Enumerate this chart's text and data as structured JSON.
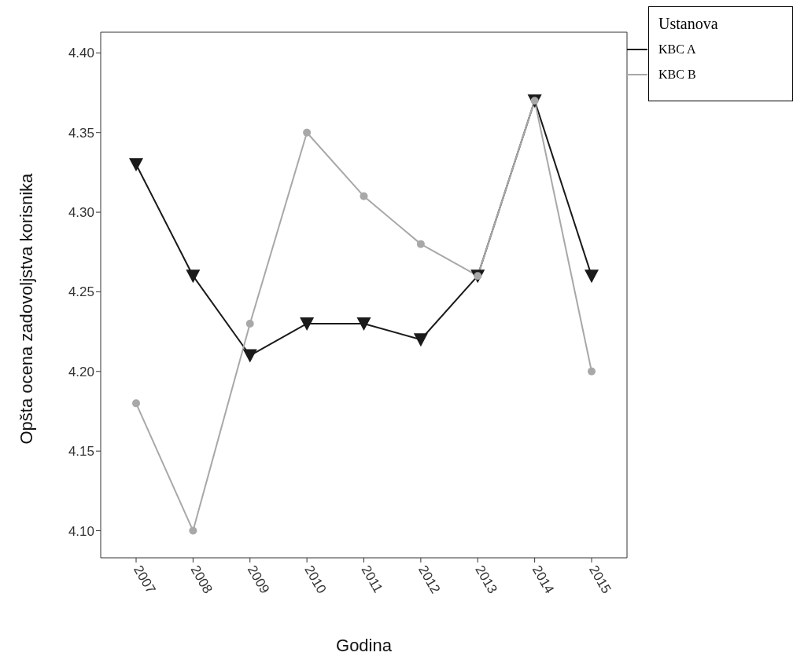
{
  "chart_data": {
    "type": "line",
    "xlabel": "Godina",
    "ylabel": "Opšta ocena zadovoljstva korisnika",
    "legend_title": "Ustanova",
    "legend": "top right",
    "grid": false,
    "categories": [
      "2007",
      "2008",
      "2009",
      "2010",
      "2011",
      "2012",
      "2013",
      "2014",
      "2015"
    ],
    "ylim": [
      4.083,
      4.413
    ],
    "yticks": [
      {
        "value": 4.1,
        "label": "4.10"
      },
      {
        "value": 4.15,
        "label": "4.15"
      },
      {
        "value": 4.2,
        "label": "4.20"
      },
      {
        "value": 4.25,
        "label": "4.25"
      },
      {
        "value": 4.3,
        "label": "4.30"
      },
      {
        "value": 4.35,
        "label": "4.35"
      },
      {
        "value": 4.4,
        "label": "4.40"
      }
    ],
    "series": [
      {
        "name": "KBC A",
        "color": "#1a1a1a",
        "marker": "triangle",
        "values": [
          4.33,
          4.26,
          4.21,
          4.23,
          4.23,
          4.22,
          4.26,
          4.37,
          4.26
        ]
      },
      {
        "name": "KBC B",
        "color": "#a8a8a8",
        "marker": "circle",
        "values": [
          4.18,
          4.1,
          4.23,
          4.35,
          4.31,
          4.28,
          4.26,
          4.37,
          4.2
        ]
      }
    ]
  }
}
